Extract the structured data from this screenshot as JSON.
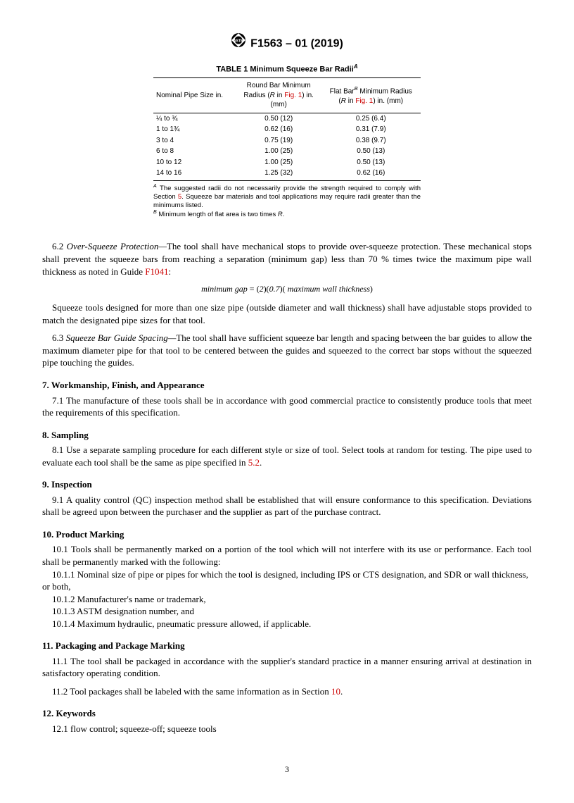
{
  "header": {
    "designation": "F1563 – 01 (2019)"
  },
  "table": {
    "title_prefix": "TABLE 1 Minimum Squeeze Bar Radii",
    "title_sup": "A",
    "columns": [
      "Nominal Pipe Size in.",
      "Round Bar Minimum Radius (R in Fig. 1) in. (mm)",
      "Flat BarB Minimum Radius (R in Fig. 1) in. (mm)"
    ],
    "rows": [
      [
        "¼ to ¾",
        "0.50 (12)",
        "0.25 (6.4)"
      ],
      [
        "1 to 1¾",
        "0.62 (16)",
        "0.31 (7.9)"
      ],
      [
        "3 to 4",
        "0.75 (19)",
        "0.38 (9.7)"
      ],
      [
        "6 to 8",
        "1.00 (25)",
        "0.50 (13)"
      ],
      [
        "10 to 12",
        "1.00 (25)",
        "0.50 (13)"
      ],
      [
        "14 to 16",
        "1.25 (32)",
        "0.62 (16)"
      ]
    ],
    "noteA_pre": "The suggested radii do not necessarily provide the strength required to comply with Section ",
    "noteA_link": "5",
    "noteA_post": ". Squeeze bar materials and tool applications may require radii greater than the minimums listed.",
    "noteB": "Minimum length of flat area is two times R."
  },
  "s6_2_pre": "6.2 ",
  "s6_2_title": "Over-Squeeze Protection—",
  "s6_2_body_pre": "The tool shall have mechanical stops to provide over-squeeze protection. These mechanical stops shall prevent the squeeze bars from reaching a separation (minimum gap) less than 70 % times twice the maximum pipe wall thickness as noted in Guide ",
  "s6_2_link": "F1041",
  "s6_2_body_post": ":",
  "formula": "minimum gap = (2)(0.7)( maximum wall thickness)",
  "s6_2_p2": "Squeeze tools designed for more than one size pipe (outside diameter and wall thickness) shall have adjustable stops provided to match the designated pipe sizes for that tool.",
  "s6_3_pre": "6.3 ",
  "s6_3_title": "Squeeze Bar Guide Spacing—",
  "s6_3_body": "The tool shall have sufficient squeeze bar length and spacing between the bar guides to allow the maximum diameter pipe for that tool to be centered between the guides and squeezed to the correct bar stops without the squeezed pipe touching the guides.",
  "s7_h": "7. Workmanship, Finish, and Appearance",
  "s7_1": "7.1 The manufacture of these tools shall be in accordance with good commercial practice to consistently produce tools that meet the requirements of this specification.",
  "s8_h": "8. Sampling",
  "s8_1_pre": "8.1 Use a separate sampling procedure for each different style or size of tool. Select tools at random for testing. The pipe used to evaluate each tool shall be the same as pipe specified in ",
  "s8_1_link": "5.2",
  "s8_1_post": ".",
  "s9_h": "9. Inspection",
  "s9_1": "9.1 A quality control (QC) inspection method shall be established that will ensure conformance to this specification. Deviations shall be agreed upon between the purchaser and the supplier as part of the purchase contract.",
  "s10_h": "10. Product Marking",
  "s10_1": "10.1 Tools shall be permanently marked on a portion of the tool which will not interfere with its use or performance. Each tool shall be permanently marked with the following:",
  "s10_1_1": "10.1.1 Nominal size of pipe or pipes for which the tool is designed, including IPS or CTS designation, and SDR or wall thickness, or both,",
  "s10_1_2": "10.1.2 Manufacturer's name or trademark,",
  "s10_1_3": "10.1.3 ASTM designation number, and",
  "s10_1_4": "10.1.4 Maximum hydraulic, pneumatic pressure allowed, if applicable.",
  "s11_h": "11. Packaging and Package Marking",
  "s11_1": "11.1 The tool shall be packaged in accordance with the supplier's standard practice in a manner ensuring arrival at destination in satisfactory operating condition.",
  "s11_2_pre": "11.2 Tool packages shall be labeled with the same information as in Section ",
  "s11_2_link": "10",
  "s11_2_post": ".",
  "s12_h": "12. Keywords",
  "s12_1": "12.1 flow control; squeeze-off; squeeze tools",
  "pagenum": "3"
}
